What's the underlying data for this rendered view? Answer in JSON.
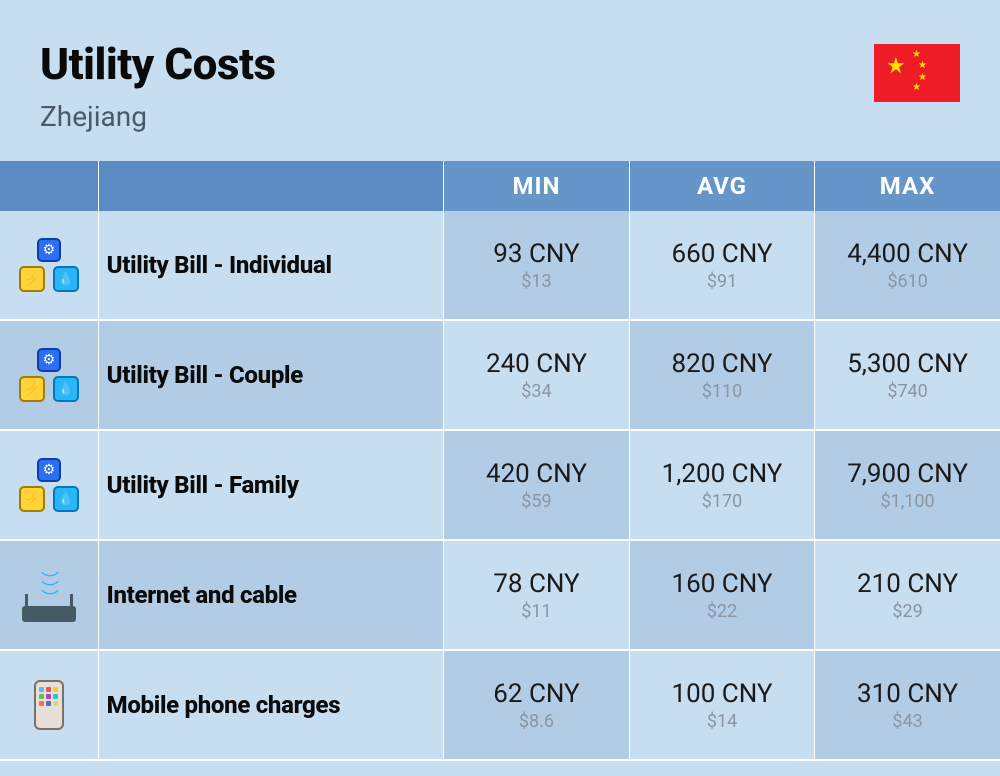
{
  "colors": {
    "page_bg": "#c7ddf0",
    "header_th_bg": "#6695c9",
    "th_blank_bg": "#5a8bc2",
    "th_text": "#ffffff",
    "row_light": "#c7ddf0",
    "row_dark": "#b2cce6",
    "gap": "#ffffff",
    "label_text": "#0a0a0a",
    "primary_text": "#1a1a1a",
    "secondary_text": "#8a96a3"
  },
  "header": {
    "title": "Utility Costs",
    "subtitle": "Zhejiang"
  },
  "columns": {
    "min": "MIN",
    "avg": "AVG",
    "max": "MAX"
  },
  "rows": [
    {
      "icon": "utility",
      "label": "Utility Bill - Individual",
      "min": {
        "p": "93 CNY",
        "s": "$13"
      },
      "avg": {
        "p": "660 CNY",
        "s": "$91"
      },
      "max": {
        "p": "4,400 CNY",
        "s": "$610"
      }
    },
    {
      "icon": "utility",
      "label": "Utility Bill - Couple",
      "min": {
        "p": "240 CNY",
        "s": "$34"
      },
      "avg": {
        "p": "820 CNY",
        "s": "$110"
      },
      "max": {
        "p": "5,300 CNY",
        "s": "$740"
      }
    },
    {
      "icon": "utility",
      "label": "Utility Bill - Family",
      "min": {
        "p": "420 CNY",
        "s": "$59"
      },
      "avg": {
        "p": "1,200 CNY",
        "s": "$170"
      },
      "max": {
        "p": "7,900 CNY",
        "s": "$1,100"
      }
    },
    {
      "icon": "router",
      "label": "Internet and cable",
      "min": {
        "p": "78 CNY",
        "s": "$11"
      },
      "avg": {
        "p": "160 CNY",
        "s": "$22"
      },
      "max": {
        "p": "210 CNY",
        "s": "$29"
      }
    },
    {
      "icon": "phone",
      "label": "Mobile phone charges",
      "min": {
        "p": "62 CNY",
        "s": "$8.6"
      },
      "avg": {
        "p": "100 CNY",
        "s": "$14"
      },
      "max": {
        "p": "310 CNY",
        "s": "$43"
      }
    }
  ],
  "phone_app_colors": [
    "#4fc3f7",
    "#ef5350",
    "#ffca28",
    "#66bb6a",
    "#ab47bc",
    "#26c6da",
    "#ff7043",
    "#5c6bc0",
    "#d4e157"
  ]
}
